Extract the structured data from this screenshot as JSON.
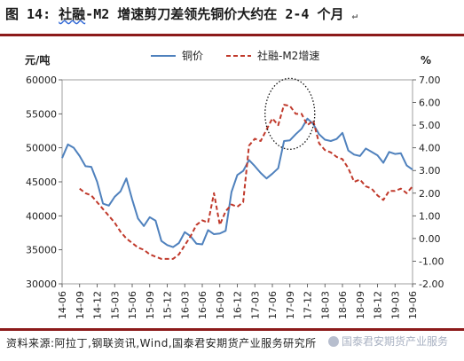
{
  "title_prefix": "图 14:",
  "title_highlight": "社融",
  "title_rest": "-M2 增速剪刀差领先铜价大约在 2-4 个月",
  "title_tail": "↵",
  "source_text": "资料来源:阿拉丁,钢联资讯,Wind,国泰君安期货产业服务研究所",
  "watermark_text": "国泰君安期货产业服务",
  "chart_data": {
    "type": "line",
    "left_unit": "元/吨",
    "right_unit": "%",
    "y_left_lim": [
      30000,
      60000
    ],
    "y_left_ticks": [
      "60000",
      "55000",
      "50000",
      "45000",
      "40000",
      "35000",
      "30000"
    ],
    "y_right_lim": [
      -2,
      7
    ],
    "y_right_ticks": [
      "7.00",
      "6.00",
      "5.00",
      "4.00",
      "3.00",
      "2.00",
      "1.00",
      "0.00",
      "-1.00",
      "-2.00"
    ],
    "x_ticks": [
      "14-06",
      "14-09",
      "14-12",
      "15-03",
      "15-06",
      "15-09",
      "15-12",
      "16-03",
      "16-06",
      "16-09",
      "16-12",
      "17-03",
      "17-06",
      "17-09",
      "17-12",
      "18-03",
      "18-06",
      "18-09",
      "18-12",
      "19-03",
      "19-06"
    ],
    "legend": "top-center",
    "series": [
      {
        "name": "铜价",
        "axis": "left",
        "color": "#4f81bd",
        "style": "solid",
        "x": [
          0,
          1,
          2,
          3,
          4,
          5,
          6,
          7,
          8,
          9,
          10,
          11,
          12,
          13,
          14,
          15,
          16,
          17,
          18,
          19,
          20,
          21,
          22,
          23,
          24,
          25,
          26,
          27,
          28,
          29,
          30,
          31,
          32,
          33,
          34,
          35,
          36,
          37,
          38,
          39,
          40,
          41,
          42,
          43,
          44,
          45,
          46,
          47,
          48,
          49,
          50,
          51,
          52,
          53,
          54,
          55,
          56,
          57,
          58,
          59,
          60
        ],
        "values": [
          48500,
          50500,
          50000,
          48800,
          47300,
          47200,
          45000,
          41800,
          41500,
          42800,
          43600,
          45500,
          42400,
          39600,
          38500,
          39800,
          39300,
          36300,
          35700,
          35400,
          36000,
          37600,
          37000,
          35900,
          35800,
          37900,
          37300,
          37400,
          37800,
          43500,
          46000,
          46600,
          48200,
          47300,
          46300,
          45500,
          46200,
          47000,
          51000,
          51100,
          52000,
          52800,
          54300,
          53500,
          52000,
          51200,
          51000,
          51300,
          52200,
          49600,
          49000,
          48800,
          49900,
          49400,
          48900,
          47800,
          49400,
          49100,
          49200,
          47400,
          46800
        ]
      },
      {
        "name": "社融-M2增速",
        "axis": "right",
        "color": "#c0392b",
        "style": "dashed",
        "x": [
          3,
          4,
          5,
          6,
          7,
          8,
          9,
          10,
          11,
          12,
          13,
          14,
          15,
          16,
          17,
          18,
          19,
          20,
          21,
          22,
          23,
          24,
          25,
          26,
          27,
          28,
          29,
          30,
          31,
          32,
          33,
          34,
          35,
          36,
          37,
          38,
          39,
          40,
          41,
          42,
          43,
          44,
          45,
          46,
          47,
          48,
          49,
          50,
          51,
          52,
          53,
          54,
          55,
          56,
          57,
          58,
          59,
          60
        ],
        "values": [
          2.2,
          2.0,
          1.9,
          1.6,
          1.3,
          1.0,
          0.7,
          0.3,
          0.0,
          -0.2,
          -0.4,
          -0.5,
          -0.7,
          -0.8,
          -0.9,
          -0.9,
          -0.9,
          -0.7,
          -0.3,
          0.1,
          0.6,
          0.8,
          0.7,
          2.0,
          0.6,
          1.2,
          1.5,
          1.4,
          1.6,
          4.1,
          4.4,
          4.3,
          4.8,
          5.3,
          5.0,
          5.9,
          5.85,
          5.5,
          5.5,
          5.0,
          5.2,
          4.2,
          3.9,
          3.8,
          3.6,
          3.5,
          3.1,
          2.5,
          2.6,
          2.3,
          2.2,
          1.9,
          1.7,
          2.1,
          2.1,
          2.2,
          2.0,
          2.3
        ]
      }
    ],
    "annotation": {
      "type": "ellipse",
      "color": "#111111",
      "style": "dotted",
      "center_x": 39,
      "center_y_left": 55000
    }
  }
}
